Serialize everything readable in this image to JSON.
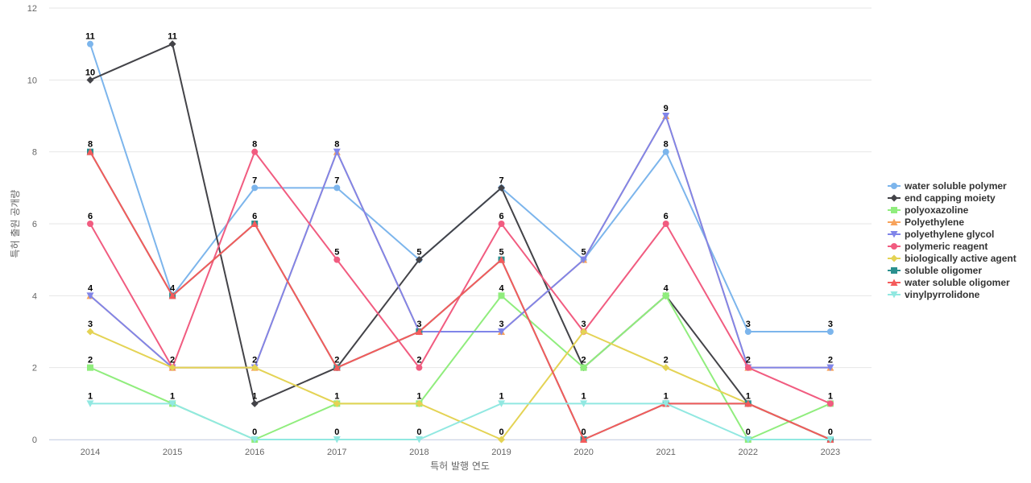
{
  "chart_data": {
    "type": "line",
    "title": "",
    "xlabel": "특허 발행 연도",
    "ylabel": "특허 출원 공개량",
    "categories": [
      "2014",
      "2015",
      "2016",
      "2017",
      "2018",
      "2019",
      "2020",
      "2021",
      "2022",
      "2023"
    ],
    "ylim": [
      0,
      12
    ],
    "yticks": [
      0,
      2,
      4,
      6,
      8,
      10,
      12
    ],
    "grid": true,
    "legend_position": "right",
    "series": [
      {
        "name": "water soluble polymer",
        "color": "#7cb5ec",
        "marker": "circle",
        "values": [
          11,
          4,
          7,
          7,
          5,
          7,
          5,
          8,
          3,
          3
        ]
      },
      {
        "name": "end capping moiety",
        "color": "#434348",
        "marker": "diamond",
        "values": [
          10,
          11,
          1,
          2,
          5,
          7,
          2,
          4,
          1,
          0
        ]
      },
      {
        "name": "polyoxazoline",
        "color": "#90ed7d",
        "marker": "square",
        "values": [
          2,
          1,
          0,
          1,
          1,
          4,
          2,
          4,
          0,
          1
        ]
      },
      {
        "name": "Polyethylene",
        "color": "#f7a35c",
        "marker": "triangle",
        "values": [
          4,
          2,
          2,
          8,
          3,
          3,
          5,
          9,
          2,
          2
        ]
      },
      {
        "name": "polyethylene glycol",
        "color": "#8085e9",
        "marker": "triangle-down",
        "values": [
          4,
          2,
          2,
          8,
          3,
          3,
          5,
          9,
          2,
          2
        ]
      },
      {
        "name": "polymeric reagent",
        "color": "#f15c80",
        "marker": "circle",
        "values": [
          6,
          2,
          8,
          5,
          2,
          6,
          3,
          6,
          2,
          1
        ]
      },
      {
        "name": "biologically active agent",
        "color": "#e4d354",
        "marker": "diamond",
        "values": [
          3,
          2,
          2,
          1,
          1,
          0,
          3,
          2,
          1,
          0
        ]
      },
      {
        "name": "soluble oligomer",
        "color": "#2b908f",
        "marker": "square",
        "values": [
          8,
          4,
          6,
          2,
          3,
          5,
          0,
          1,
          1,
          0
        ]
      },
      {
        "name": "water soluble oligomer",
        "color": "#f45b5b",
        "marker": "triangle",
        "values": [
          8,
          4,
          6,
          2,
          3,
          5,
          0,
          1,
          1,
          0
        ]
      },
      {
        "name": "vinylpyrrolidone",
        "color": "#91e8e1",
        "marker": "triangle-down",
        "values": [
          1,
          1,
          0,
          0,
          0,
          1,
          1,
          1,
          0,
          0
        ]
      }
    ]
  }
}
